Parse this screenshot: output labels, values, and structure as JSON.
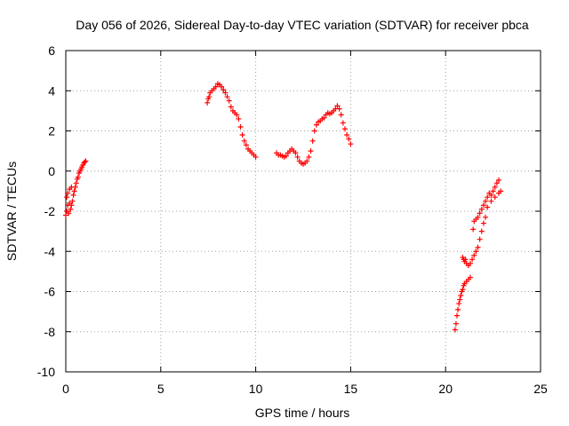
{
  "chart_data": {
    "type": "scatter",
    "title": "Day 056 of 2026, Sidereal Day-to-day VTEC variation (SDTVAR) for receiver pbca",
    "xlabel": "GPS time / hours",
    "ylabel": "SDTVAR / TECUs",
    "xlim": [
      0,
      25
    ],
    "ylim": [
      -10,
      6
    ],
    "xticks": [
      0,
      5,
      10,
      15,
      20,
      25
    ],
    "yticks": [
      -10,
      -8,
      -6,
      -4,
      -2,
      0,
      2,
      4,
      6
    ],
    "xtick_labels": [
      "0",
      "5",
      "10",
      "15",
      "20",
      "25"
    ],
    "ytick_labels": [
      "-10",
      "-8",
      "-6",
      "-4",
      "-2",
      "0",
      "2",
      "4",
      "6"
    ],
    "grid": true,
    "marker": "plus",
    "color": "#ff0000",
    "segments": [
      [
        [
          0.0,
          -2.2
        ],
        [
          0.05,
          -2.0
        ],
        [
          0.1,
          -1.7
        ],
        [
          0.15,
          -2.1
        ],
        [
          0.2,
          -1.6
        ],
        [
          0.25,
          -1.9
        ],
        [
          0.3,
          -1.7
        ],
        [
          0.35,
          -1.5
        ],
        [
          0.4,
          -1.2
        ],
        [
          0.45,
          -1.0
        ],
        [
          0.5,
          -0.8
        ],
        [
          0.55,
          -0.6
        ],
        [
          0.6,
          -0.4
        ],
        [
          0.65,
          -0.3
        ],
        [
          0.7,
          -0.1
        ],
        [
          0.75,
          0.0
        ],
        [
          0.8,
          0.1
        ],
        [
          0.85,
          0.2
        ],
        [
          0.9,
          0.3
        ],
        [
          0.95,
          0.4
        ],
        [
          1.0,
          0.45
        ],
        [
          1.05,
          0.5
        ],
        [
          0.1,
          -1.1
        ],
        [
          0.2,
          -0.9
        ],
        [
          0.3,
          -0.8
        ],
        [
          0.05,
          -1.3
        ]
      ],
      [
        [
          7.45,
          3.4
        ],
        [
          7.5,
          3.6
        ],
        [
          7.55,
          3.7
        ],
        [
          7.6,
          3.9
        ],
        [
          7.7,
          4.0
        ],
        [
          7.8,
          4.1
        ],
        [
          7.9,
          4.2
        ],
        [
          8.0,
          4.35
        ],
        [
          8.1,
          4.3
        ],
        [
          8.2,
          4.2
        ],
        [
          8.3,
          4.05
        ],
        [
          8.4,
          3.9
        ],
        [
          8.5,
          3.7
        ],
        [
          8.6,
          3.5
        ],
        [
          8.7,
          3.2
        ],
        [
          8.8,
          3.0
        ],
        [
          8.9,
          2.9
        ],
        [
          9.0,
          2.8
        ],
        [
          9.1,
          2.6
        ],
        [
          9.2,
          2.2
        ],
        [
          9.3,
          1.8
        ],
        [
          9.4,
          1.5
        ],
        [
          9.5,
          1.3
        ],
        [
          9.6,
          1.1
        ],
        [
          9.7,
          1.0
        ],
        [
          9.8,
          0.9
        ],
        [
          9.9,
          0.8
        ],
        [
          10.0,
          0.7
        ]
      ],
      [
        [
          11.1,
          0.9
        ],
        [
          11.2,
          0.8
        ],
        [
          11.3,
          0.8
        ],
        [
          11.4,
          0.75
        ],
        [
          11.5,
          0.7
        ],
        [
          11.6,
          0.75
        ],
        [
          11.7,
          0.9
        ],
        [
          11.8,
          1.0
        ],
        [
          11.9,
          1.1
        ],
        [
          12.0,
          1.0
        ],
        [
          12.1,
          0.9
        ],
        [
          12.2,
          0.7
        ],
        [
          12.3,
          0.5
        ],
        [
          12.4,
          0.4
        ],
        [
          12.5,
          0.35
        ],
        [
          12.6,
          0.4
        ],
        [
          12.7,
          0.5
        ],
        [
          12.8,
          0.7
        ],
        [
          12.9,
          1.0
        ],
        [
          13.0,
          1.5
        ],
        [
          13.1,
          2.0
        ],
        [
          13.2,
          2.3
        ],
        [
          13.3,
          2.45
        ],
        [
          13.4,
          2.5
        ],
        [
          13.5,
          2.6
        ],
        [
          13.6,
          2.65
        ],
        [
          13.7,
          2.8
        ],
        [
          13.8,
          2.9
        ],
        [
          13.9,
          2.85
        ],
        [
          14.0,
          2.9
        ],
        [
          14.1,
          3.0
        ],
        [
          14.2,
          3.1
        ],
        [
          14.3,
          3.25
        ],
        [
          14.4,
          3.1
        ],
        [
          14.5,
          2.8
        ],
        [
          14.6,
          2.4
        ],
        [
          14.7,
          2.1
        ],
        [
          14.8,
          1.8
        ],
        [
          14.9,
          1.6
        ],
        [
          15.0,
          1.35
        ]
      ],
      [
        [
          20.5,
          -7.9
        ],
        [
          20.55,
          -7.6
        ],
        [
          20.6,
          -7.2
        ],
        [
          20.65,
          -6.9
        ],
        [
          20.7,
          -6.6
        ],
        [
          20.75,
          -6.4
        ],
        [
          20.8,
          -6.2
        ],
        [
          20.85,
          -6.0
        ],
        [
          20.9,
          -5.9
        ],
        [
          20.95,
          -5.7
        ],
        [
          21.0,
          -5.6
        ],
        [
          21.1,
          -5.5
        ],
        [
          21.2,
          -5.4
        ],
        [
          21.3,
          -5.3
        ],
        [
          20.9,
          -4.3
        ],
        [
          20.95,
          -4.4
        ],
        [
          21.0,
          -4.5
        ],
        [
          21.05,
          -4.4
        ],
        [
          21.1,
          -4.6
        ],
        [
          21.2,
          -4.7
        ],
        [
          21.3,
          -4.6
        ],
        [
          21.4,
          -4.4
        ],
        [
          21.5,
          -4.2
        ],
        [
          21.6,
          -4.0
        ],
        [
          21.7,
          -3.8
        ],
        [
          21.8,
          -3.4
        ],
        [
          21.9,
          -3.0
        ],
        [
          22.0,
          -2.6
        ],
        [
          22.1,
          -2.3
        ],
        [
          21.5,
          -2.5
        ],
        [
          21.6,
          -2.4
        ],
        [
          21.7,
          -2.3
        ],
        [
          21.8,
          -2.1
        ],
        [
          21.9,
          -1.9
        ],
        [
          22.0,
          -1.7
        ],
        [
          22.1,
          -1.5
        ],
        [
          22.2,
          -1.3
        ],
        [
          22.3,
          -1.1
        ],
        [
          22.4,
          -1.2
        ],
        [
          22.5,
          -1.0
        ],
        [
          22.6,
          -0.8
        ],
        [
          22.7,
          -0.6
        ],
        [
          22.8,
          -0.45
        ],
        [
          21.45,
          -2.9
        ],
        [
          22.2,
          -1.8
        ],
        [
          22.4,
          -1.5
        ],
        [
          22.6,
          -1.3
        ],
        [
          22.8,
          -1.1
        ],
        [
          22.9,
          -1.0
        ]
      ]
    ]
  }
}
